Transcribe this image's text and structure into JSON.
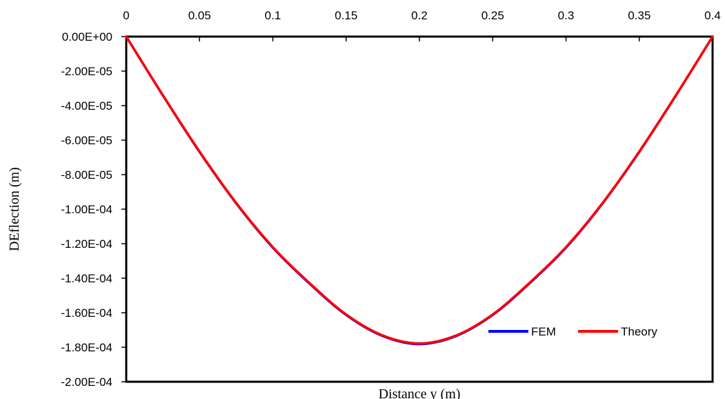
{
  "chart_data": {
    "type": "line",
    "title": "",
    "xlabel": "Distance y (m)",
    "ylabel": "DEflection (m)",
    "xlim": [
      0,
      0.4
    ],
    "ylim": [
      -0.0002,
      0
    ],
    "x_axis_position": "top",
    "grid": false,
    "legend_position": "bottom-right",
    "x_ticks": [
      0,
      0.05,
      0.1,
      0.15,
      0.2,
      0.25,
      0.3,
      0.35,
      0.4
    ],
    "x_tick_labels": [
      "0",
      "0.05",
      "0.1",
      "0.15",
      "0.2",
      "0.25",
      "0.3",
      "0.35",
      "0.4"
    ],
    "y_ticks": [
      0,
      -2e-05,
      -4e-05,
      -6e-05,
      -8e-05,
      -0.0001,
      -0.00012,
      -0.00014,
      -0.00016,
      -0.00018,
      -0.0002
    ],
    "y_tick_labels": [
      "0.00E+00",
      "-2.00E-05",
      "-4.00E-05",
      "-6.00E-05",
      "-8.00E-05",
      "-1.00E-04",
      "-1.20E-04",
      "-1.40E-04",
      "-1.60E-04",
      "-1.80E-04",
      "-2.00E-04"
    ],
    "series": [
      {
        "name": "FEM",
        "color": "#0000ff",
        "x": [
          0,
          0.025,
          0.05,
          0.075,
          0.1,
          0.125,
          0.15,
          0.175,
          0.2,
          0.225,
          0.25,
          0.275,
          0.3,
          0.325,
          0.35,
          0.375,
          0.4
        ],
        "y": [
          0,
          -3.41e-05,
          -6.68e-05,
          -9.66e-05,
          -0.0001223,
          -0.0001431,
          -0.0001613,
          -0.0001735,
          -0.0001782,
          -0.0001735,
          -0.0001613,
          -0.0001431,
          -0.0001223,
          -9.66e-05,
          -6.68e-05,
          -3.41e-05,
          0
        ]
      },
      {
        "name": "Theory",
        "color": "#ff0000",
        "x": [
          0,
          0.025,
          0.05,
          0.075,
          0.1,
          0.125,
          0.15,
          0.175,
          0.2,
          0.225,
          0.25,
          0.275,
          0.3,
          0.325,
          0.35,
          0.375,
          0.4
        ],
        "y": [
          0,
          -3.4e-05,
          -6.66e-05,
          -9.64e-05,
          -0.000122,
          -0.0001428,
          -0.000161,
          -0.0001732,
          -0.0001778,
          -0.0001732,
          -0.000161,
          -0.0001428,
          -0.000122,
          -9.64e-05,
          -6.66e-05,
          -3.4e-05,
          0
        ]
      }
    ]
  }
}
